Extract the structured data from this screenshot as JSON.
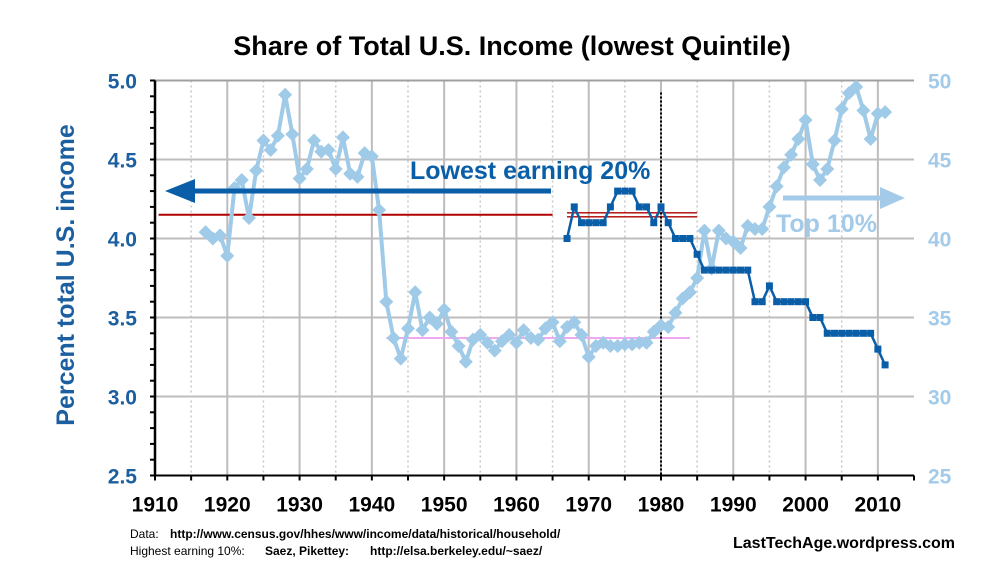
{
  "chart_data": {
    "type": "line",
    "title": "Share of Total U.S. Income (lowest Quintile)",
    "ylabel": "Percent total U.S. income",
    "xlim": [
      1910,
      2015
    ],
    "ylim": [
      2.5,
      5.0
    ],
    "y2lim": [
      25,
      50
    ],
    "x_ticks": [
      1910,
      1920,
      1930,
      1940,
      1950,
      1960,
      1970,
      1980,
      1990,
      2000,
      2010
    ],
    "y_ticks": [
      "2.5",
      "3.0",
      "3.5",
      "4.0",
      "4.5",
      "5.0"
    ],
    "y2_ticks": [
      "25",
      "30",
      "35",
      "40",
      "45",
      "50"
    ],
    "grid": true,
    "series": [
      {
        "name": "Lowest earning 20%",
        "axis": "left",
        "color": "#0a5ea8",
        "marker": "square",
        "x": [
          1967,
          1968,
          1969,
          1970,
          1971,
          1972,
          1973,
          1974,
          1975,
          1976,
          1977,
          1978,
          1979,
          1980,
          1981,
          1982,
          1983,
          1984,
          1985,
          1986,
          1987,
          1988,
          1989,
          1990,
          1991,
          1992,
          1993,
          1994,
          1995,
          1996,
          1997,
          1998,
          1999,
          2000,
          2001,
          2002,
          2003,
          2004,
          2005,
          2006,
          2007,
          2008,
          2009,
          2010,
          2011
        ],
        "y": [
          4.0,
          4.2,
          4.1,
          4.1,
          4.1,
          4.1,
          4.2,
          4.3,
          4.3,
          4.3,
          4.2,
          4.2,
          4.1,
          4.2,
          4.1,
          4.0,
          4.0,
          4.0,
          3.9,
          3.8,
          3.8,
          3.8,
          3.8,
          3.8,
          3.8,
          3.8,
          3.6,
          3.6,
          3.7,
          3.6,
          3.6,
          3.6,
          3.6,
          3.6,
          3.5,
          3.5,
          3.4,
          3.4,
          3.4,
          3.4,
          3.4,
          3.4,
          3.4,
          3.3,
          3.2
        ]
      },
      {
        "name": "Top 10%",
        "axis": "right",
        "color": "#9fcae8",
        "marker": "diamond",
        "x": [
          1917,
          1918,
          1919,
          1920,
          1921,
          1922,
          1923,
          1924,
          1925,
          1926,
          1927,
          1928,
          1929,
          1930,
          1931,
          1932,
          1933,
          1934,
          1935,
          1936,
          1937,
          1938,
          1939,
          1940,
          1941,
          1942,
          1943,
          1944,
          1945,
          1946,
          1947,
          1948,
          1949,
          1950,
          1951,
          1952,
          1953,
          1954,
          1955,
          1956,
          1957,
          1958,
          1959,
          1960,
          1961,
          1962,
          1963,
          1964,
          1965,
          1966,
          1967,
          1968,
          1969,
          1970,
          1971,
          1972,
          1973,
          1974,
          1975,
          1976,
          1977,
          1978,
          1979,
          1980,
          1981,
          1982,
          1983,
          1984,
          1985,
          1986,
          1987,
          1988,
          1989,
          1990,
          1991,
          1992,
          1993,
          1994,
          1995,
          1996,
          1997,
          1998,
          1999,
          2000,
          2001,
          2002,
          2003,
          2004,
          2005,
          2006,
          2007,
          2008,
          2009,
          2010,
          2011
        ],
        "y": [
          40.4,
          40.0,
          40.2,
          38.9,
          43.2,
          43.7,
          41.3,
          44.3,
          46.2,
          45.6,
          46.5,
          49.1,
          46.6,
          43.8,
          44.4,
          46.2,
          45.5,
          45.6,
          44.4,
          46.4,
          44.1,
          43.9,
          45.4,
          45.2,
          41.8,
          36.0,
          33.7,
          32.4,
          34.3,
          36.6,
          34.2,
          35.0,
          34.6,
          35.5,
          34.1,
          33.2,
          32.2,
          33.6,
          33.9,
          33.4,
          32.9,
          33.5,
          33.9,
          33.4,
          34.2,
          33.7,
          33.6,
          34.3,
          34.7,
          33.5,
          34.4,
          34.7,
          33.9,
          32.5,
          33.2,
          33.4,
          33.2,
          33.2,
          33.3,
          33.3,
          33.4,
          33.4,
          34.1,
          34.5,
          34.4,
          35.3,
          36.2,
          36.6,
          37.5,
          40.5,
          38.1,
          40.5,
          40.0,
          39.8,
          39.4,
          40.8,
          40.6,
          40.6,
          42.0,
          43.3,
          44.5,
          45.3,
          46.3,
          47.5,
          44.7,
          43.7,
          44.4,
          46.2,
          48.2,
          49.2,
          49.6,
          48.1,
          46.3,
          47.9,
          48.0
        ]
      }
    ],
    "reference_lines": [
      {
        "name": "lowest-quintile-average-1910-1965",
        "y": 4.15,
        "x": [
          1910.5,
          1965
        ],
        "color": "#b00000"
      },
      {
        "name": "lowest-quintile-average-1967-1985",
        "y": 4.15,
        "x": [
          1967,
          1985
        ],
        "color": "#b00000",
        "style": "double"
      },
      {
        "name": "top10-average-1942-1984",
        "y": 3.37,
        "x": [
          1942,
          1984
        ],
        "color": "#f0a8f0"
      },
      {
        "name": "divider-1980",
        "x": 1980,
        "style": "dotted",
        "color": "#000000"
      }
    ],
    "annotations": [
      {
        "text": "Lowest earning 20%",
        "color": "#0a5ea8",
        "arrow": "left"
      },
      {
        "text": "Top 10%",
        "color": "#a3cbe9",
        "arrow": "right"
      }
    ]
  },
  "footer": {
    "data_label": "Data:",
    "data_url": "http://www.census.gov/hhes/www/income/data/historical/household/",
    "top_label": "Highest  earning 10%:",
    "top_authors": "Saez, Pikettey:",
    "top_url": "http://elsa.berkeley.edu/~saez/",
    "site": "LastTechAge.wordpress.com"
  }
}
